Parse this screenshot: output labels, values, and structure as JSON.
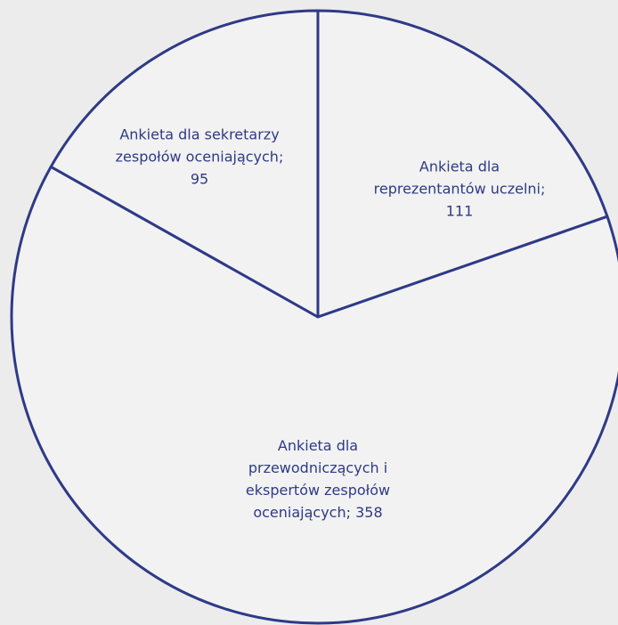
{
  "chart_data": {
    "type": "pie",
    "labels": [
      "Ankieta dla\nreprezentantów uczelni;\n111",
      "Ankieta dla\nprzewodniczących i\nekspertów zespołów\noceniających; 358",
      "Ankieta dla sekretarzy\nzespołów oceniających;\n95"
    ],
    "values": [
      111,
      358,
      95
    ],
    "fill": "#f2f2f2",
    "edge_color": "#2e3a87",
    "text_color": "#2e3a87"
  }
}
